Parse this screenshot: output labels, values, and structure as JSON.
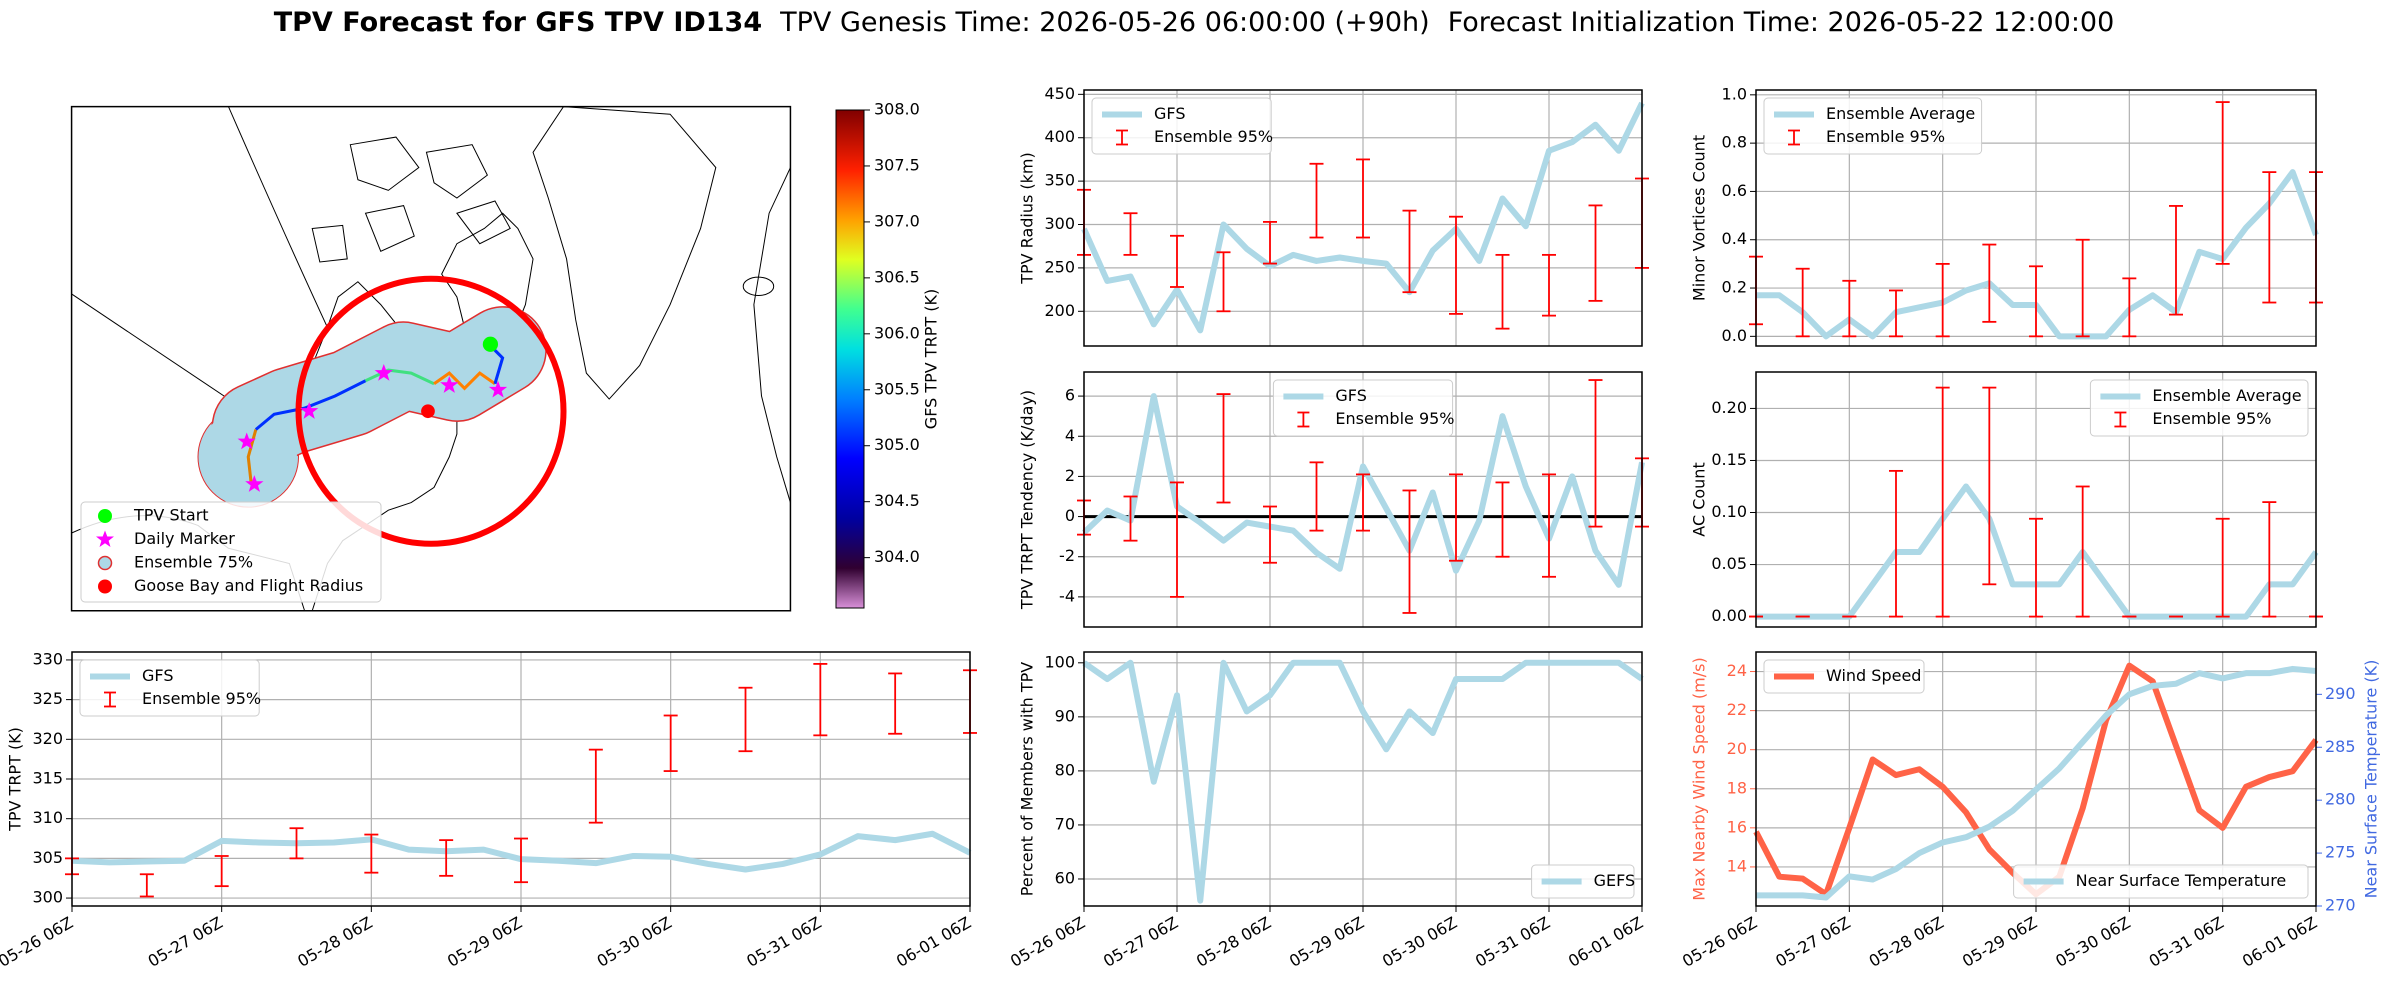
{
  "title": {
    "bold": "TPV Forecast for GFS TPV ID134",
    "genesis": "TPV Genesis Time: 2026-05-26 06:00:00 (+90h)",
    "init": "Forecast Initialization Time: 2026-05-22 12:00:00"
  },
  "chart_data": [
    {
      "type": "map",
      "legend": [
        "TPV Start",
        "Daily Marker",
        "Ensemble 75%",
        "Goose Bay and Flight Radius"
      ],
      "colorbar": {
        "label": "GFS TPV TRPT (K)",
        "ylim": [
          303.55,
          308.0
        ],
        "yticks": [
          {
            "value": 308,
            "label": "308.0"
          },
          307.5,
          {
            "value": 307,
            "label": "307.0"
          },
          306.5,
          {
            "value": 306,
            "label": "306.0"
          },
          305.5,
          {
            "value": 305,
            "label": "305.0"
          },
          304.5,
          {
            "value": 304,
            "label": "304.0"
          }
        ]
      }
    },
    {
      "type": "line",
      "ylabel": "TPV TRPT (K)",
      "ylim": [
        299,
        331
      ],
      "yticks": [
        300,
        305,
        310,
        315,
        320,
        325,
        330
      ],
      "grid": true,
      "legend": "upper left",
      "x": [
        "05-26 06Z",
        "05-26 12Z",
        "05-26 18Z",
        "05-27 00Z",
        "05-27 06Z",
        "05-27 12Z",
        "05-27 18Z",
        "05-28 00Z",
        "05-28 06Z",
        "05-28 12Z",
        "05-28 18Z",
        "05-29 00Z",
        "05-29 06Z",
        "05-29 12Z",
        "05-29 18Z",
        "05-30 00Z",
        "05-30 06Z",
        "05-30 12Z",
        "05-30 18Z",
        "05-31 00Z",
        "05-31 06Z",
        "05-31 12Z",
        "05-31 18Z",
        "06-01 00Z",
        "06-01 06Z"
      ],
      "xticks": [
        "05-26 06Z",
        "05-27 06Z",
        "05-28 06Z",
        "05-29 06Z",
        "05-30 06Z",
        "05-31 06Z",
        "06-01 06Z"
      ],
      "series": [
        {
          "name": "GFS",
          "color": "#add8e6",
          "values": [
            304.7,
            304.5,
            304.6,
            304.7,
            307.2,
            307,
            306.9,
            307,
            307.4,
            306.1,
            305.9,
            306.1,
            304.9,
            304.7,
            304.4,
            305.3,
            305.2,
            304.3,
            303.6,
            304.3,
            305.5,
            307.8,
            307.3,
            308.1,
            305.7
          ]
        },
        {
          "name": "Ensemble 95%",
          "color": "#ff0000",
          "low": [
            303,
            null,
            300.2,
            null,
            301.5,
            null,
            305,
            null,
            303.2,
            null,
            302.8,
            null,
            302,
            null,
            309.5,
            null,
            316,
            null,
            318.5,
            null,
            320.5,
            null,
            320.7,
            null,
            320.8
          ],
          "high": [
            305,
            null,
            303,
            null,
            305.3,
            null,
            308.8,
            null,
            308,
            null,
            307.3,
            null,
            307.5,
            null,
            318.7,
            null,
            323,
            null,
            326.5,
            null,
            329.5,
            null,
            328.3,
            null,
            328.7
          ]
        }
      ]
    },
    {
      "type": "line",
      "ylabel": "TPV Radius (km)",
      "ylim": [
        160,
        455
      ],
      "yticks": [
        200,
        250,
        300,
        350,
        400,
        450
      ],
      "grid": true,
      "legend": "upper left",
      "x": [
        "05-26 06Z",
        "05-26 12Z",
        "05-26 18Z",
        "05-27 00Z",
        "05-27 06Z",
        "05-27 12Z",
        "05-27 18Z",
        "05-28 00Z",
        "05-28 06Z",
        "05-28 12Z",
        "05-28 18Z",
        "05-29 00Z",
        "05-29 06Z",
        "05-29 12Z",
        "05-29 18Z",
        "05-30 00Z",
        "05-30 06Z",
        "05-30 12Z",
        "05-30 18Z",
        "05-31 00Z",
        "05-31 06Z",
        "05-31 12Z",
        "05-31 18Z",
        "06-01 00Z",
        "06-01 06Z"
      ],
      "series": [
        {
          "name": "GFS",
          "color": "#add8e6",
          "values": [
            295,
            235,
            240,
            185,
            225,
            178,
            300,
            272,
            252,
            265,
            258,
            262,
            258,
            255,
            222,
            270,
            295,
            258,
            330,
            298,
            385,
            395,
            415,
            385,
            440
          ]
        },
        {
          "name": "Ensemble 95%",
          "color": "#ff0000",
          "low": [
            265,
            null,
            265,
            null,
            228,
            null,
            200,
            null,
            255,
            null,
            285,
            null,
            285,
            null,
            222,
            null,
            197,
            null,
            180,
            null,
            195,
            null,
            212,
            null,
            250
          ],
          "high": [
            340,
            null,
            313,
            null,
            287,
            null,
            268,
            null,
            303,
            null,
            370,
            null,
            375,
            null,
            316,
            null,
            309,
            null,
            265,
            null,
            265,
            null,
            322,
            null,
            353
          ]
        }
      ]
    },
    {
      "type": "line",
      "ylabel": "TPV TRPT Tendency (K/day)",
      "ylim": [
        -5.5,
        7.2
      ],
      "yticks": [
        -4,
        -2,
        0,
        2,
        4,
        6
      ],
      "grid": true,
      "legend": "upper center",
      "hline": 0,
      "x": [
        "05-26 06Z",
        "05-26 12Z",
        "05-26 18Z",
        "05-27 00Z",
        "05-27 06Z",
        "05-27 12Z",
        "05-27 18Z",
        "05-28 00Z",
        "05-28 06Z",
        "05-28 12Z",
        "05-28 18Z",
        "05-29 00Z",
        "05-29 06Z",
        "05-29 12Z",
        "05-29 18Z",
        "05-30 00Z",
        "05-30 06Z",
        "05-30 12Z",
        "05-30 18Z",
        "05-31 00Z",
        "05-31 06Z",
        "05-31 12Z",
        "05-31 18Z",
        "06-01 00Z",
        "06-01 06Z"
      ],
      "series": [
        {
          "name": "GFS",
          "color": "#add8e6",
          "values": [
            -0.8,
            0.3,
            -0.2,
            6,
            0.5,
            -0.3,
            -1.2,
            -0.3,
            -0.5,
            -0.7,
            -1.8,
            -2.6,
            2.5,
            0.4,
            -1.7,
            1.2,
            -2.7,
            -0.2,
            5,
            1.5,
            -1.1,
            2,
            -1.7,
            -3.4,
            2.7
          ]
        },
        {
          "name": "Ensemble 95%",
          "color": "#ff0000",
          "low": [
            -0.9,
            null,
            -1.2,
            null,
            -4,
            null,
            0.7,
            null,
            -2.3,
            null,
            -0.7,
            null,
            -0.7,
            null,
            -4.8,
            null,
            -2.2,
            null,
            -2,
            null,
            -3,
            null,
            -0.5,
            null,
            -0.5
          ],
          "high": [
            0.8,
            null,
            1,
            null,
            1.7,
            null,
            6.1,
            null,
            0.5,
            null,
            2.7,
            null,
            2.1,
            null,
            1.3,
            null,
            2.1,
            null,
            1.7,
            null,
            2.1,
            null,
            6.8,
            null,
            2.9
          ]
        }
      ]
    },
    {
      "type": "line",
      "ylabel": "Percent of Members with TPV",
      "ylim": [
        55,
        102
      ],
      "yticks": [
        60,
        70,
        80,
        90,
        100
      ],
      "grid": true,
      "legend": "lower right",
      "x": [
        "05-26 06Z",
        "05-26 12Z",
        "05-26 18Z",
        "05-27 00Z",
        "05-27 06Z",
        "05-27 12Z",
        "05-27 18Z",
        "05-28 00Z",
        "05-28 06Z",
        "05-28 12Z",
        "05-28 18Z",
        "05-29 00Z",
        "05-29 06Z",
        "05-29 12Z",
        "05-29 18Z",
        "05-30 00Z",
        "05-30 06Z",
        "05-30 12Z",
        "05-30 18Z",
        "05-31 00Z",
        "05-31 06Z",
        "05-31 12Z",
        "05-31 18Z",
        "06-01 00Z",
        "06-01 06Z"
      ],
      "xticks": [
        "05-26 06Z",
        "05-27 06Z",
        "05-28 06Z",
        "05-29 06Z",
        "05-30 06Z",
        "05-31 06Z",
        "06-01 06Z"
      ],
      "series": [
        {
          "name": "GEFS",
          "color": "#add8e6",
          "values": [
            100,
            97,
            100,
            78,
            94,
            56,
            100,
            91,
            94,
            100,
            100,
            100,
            91,
            84,
            91,
            87,
            97,
            97,
            97,
            100,
            100,
            100,
            100,
            100,
            97
          ]
        }
      ]
    },
    {
      "type": "line",
      "ylabel": "Minor Vortices Count",
      "ylim": [
        -0.04,
        1.02
      ],
      "yticks": [
        {
          "value": 0,
          "label": "0.0"
        },
        0.2,
        0.4,
        0.6,
        0.8,
        {
          "value": 1,
          "label": "1.0"
        }
      ],
      "grid": true,
      "legend": "upper left",
      "x": [
        "05-26 06Z",
        "05-26 12Z",
        "05-26 18Z",
        "05-27 00Z",
        "05-27 06Z",
        "05-27 12Z",
        "05-27 18Z",
        "05-28 00Z",
        "05-28 06Z",
        "05-28 12Z",
        "05-28 18Z",
        "05-29 00Z",
        "05-29 06Z",
        "05-29 12Z",
        "05-29 18Z",
        "05-30 00Z",
        "05-30 06Z",
        "05-30 12Z",
        "05-30 18Z",
        "05-31 00Z",
        "05-31 06Z",
        "05-31 12Z",
        "05-31 18Z",
        "06-01 00Z",
        "06-01 06Z"
      ],
      "series": [
        {
          "name": "Ensemble Average",
          "color": "#add8e6",
          "values": [
            0.17,
            0.17,
            0.1,
            0,
            0.07,
            0,
            0.1,
            0.12,
            0.14,
            0.19,
            0.22,
            0.13,
            0.13,
            0,
            0,
            0,
            0.11,
            0.17,
            0.1,
            0.35,
            0.32,
            0.45,
            0.55,
            0.68,
            0.42
          ]
        },
        {
          "name": "Ensemble 95%",
          "color": "#ff0000",
          "low": [
            0.05,
            null,
            0,
            null,
            0,
            null,
            0,
            null,
            0,
            null,
            0.06,
            null,
            0,
            null,
            0,
            null,
            0,
            null,
            0.09,
            null,
            0.3,
            null,
            0.14,
            null,
            0.14
          ],
          "high": [
            0.33,
            null,
            0.28,
            null,
            0.23,
            null,
            0.19,
            null,
            0.3,
            null,
            0.38,
            null,
            0.29,
            null,
            0.4,
            null,
            0.24,
            null,
            0.54,
            null,
            0.97,
            null,
            0.68,
            null,
            0.68
          ]
        }
      ]
    },
    {
      "type": "line",
      "ylabel": "AC Count",
      "ylim": [
        -0.01,
        0.235
      ],
      "yticks": [
        {
          "value": 0,
          "label": "0.00"
        },
        0.05,
        {
          "value": 0.1,
          "label": "0.10"
        },
        0.15,
        {
          "value": 0.2,
          "label": "0.20"
        }
      ],
      "grid": true,
      "legend": "upper right",
      "x": [
        "05-26 06Z",
        "05-26 12Z",
        "05-26 18Z",
        "05-27 00Z",
        "05-27 06Z",
        "05-27 12Z",
        "05-27 18Z",
        "05-28 00Z",
        "05-28 06Z",
        "05-28 12Z",
        "05-28 18Z",
        "05-29 00Z",
        "05-29 06Z",
        "05-29 12Z",
        "05-29 18Z",
        "05-30 00Z",
        "05-30 06Z",
        "05-30 12Z",
        "05-30 18Z",
        "05-31 00Z",
        "05-31 06Z",
        "05-31 12Z",
        "05-31 18Z",
        "06-01 00Z",
        "06-01 06Z"
      ],
      "series": [
        {
          "name": "Ensemble Average",
          "color": "#add8e6",
          "values": [
            0,
            0,
            0,
            0,
            0,
            0.031,
            0.062,
            0.062,
            0.094,
            0.125,
            0.094,
            0.031,
            0.031,
            0.031,
            0.062,
            0.031,
            0,
            0,
            0,
            0,
            0,
            0,
            0.031,
            0.031,
            0.062
          ]
        },
        {
          "name": "Ensemble 95%",
          "color": "#ff0000",
          "low": [
            0,
            null,
            0,
            null,
            0,
            null,
            0,
            null,
            0,
            null,
            0.031,
            null,
            0,
            null,
            0,
            null,
            0,
            null,
            0,
            null,
            0,
            null,
            0,
            null,
            0
          ],
          "high": [
            0,
            null,
            0,
            null,
            0,
            null,
            0.14,
            null,
            0.22,
            null,
            0.22,
            null,
            0.094,
            null,
            0.125,
            null,
            0,
            null,
            0,
            null,
            0.094,
            null,
            0.11,
            null,
            0
          ]
        }
      ]
    },
    {
      "type": "line",
      "ylabel": "Max Nearby Wind Speed (m/s)",
      "ycolor": "#ff6347",
      "ylim": [
        12,
        25
      ],
      "yticks": [
        14,
        16,
        18,
        20,
        22,
        24
      ],
      "y2label": "Near Surface Temperature (K)",
      "y2color": "#4169e1",
      "y2lim": [
        270,
        294
      ],
      "y2ticks": [
        270,
        275,
        280,
        285,
        290
      ],
      "grid": true,
      "legend": "upper left",
      "legend2": "lower right",
      "x": [
        "05-26 06Z",
        "05-26 12Z",
        "05-26 18Z",
        "05-27 00Z",
        "05-27 06Z",
        "05-27 12Z",
        "05-27 18Z",
        "05-28 00Z",
        "05-28 06Z",
        "05-28 12Z",
        "05-28 18Z",
        "05-29 00Z",
        "05-29 06Z",
        "05-29 12Z",
        "05-29 18Z",
        "05-30 00Z",
        "05-30 06Z",
        "05-30 12Z",
        "05-30 18Z",
        "05-31 00Z",
        "05-31 06Z",
        "05-31 12Z",
        "05-31 18Z",
        "06-01 00Z",
        "06-01 06Z"
      ],
      "xticks": [
        "05-26 06Z",
        "05-27 06Z",
        "05-28 06Z",
        "05-29 06Z",
        "05-30 06Z",
        "05-31 06Z",
        "06-01 06Z"
      ],
      "series": [
        {
          "name": "Wind Speed",
          "color": "#ff6347",
          "values": [
            15.8,
            13.5,
            13.4,
            12.6,
            16,
            19.5,
            18.7,
            19,
            18.1,
            16.8,
            14.9,
            13.7,
            12.6,
            13.5,
            17,
            21.5,
            24.3,
            23.5,
            20.2,
            16.9,
            16,
            18.1,
            18.6,
            18.9,
            20.5
          ]
        },
        {
          "name": "Near Surface Temperature",
          "color": "#add8e6",
          "axis": "y2",
          "values": [
            271,
            271,
            271,
            270.8,
            272.8,
            272.5,
            273.5,
            275,
            276,
            276.5,
            277.5,
            279,
            281,
            283,
            285.5,
            288,
            290,
            290.8,
            291,
            292,
            291.5,
            292,
            292,
            292.4,
            292.2
          ]
        }
      ]
    }
  ]
}
